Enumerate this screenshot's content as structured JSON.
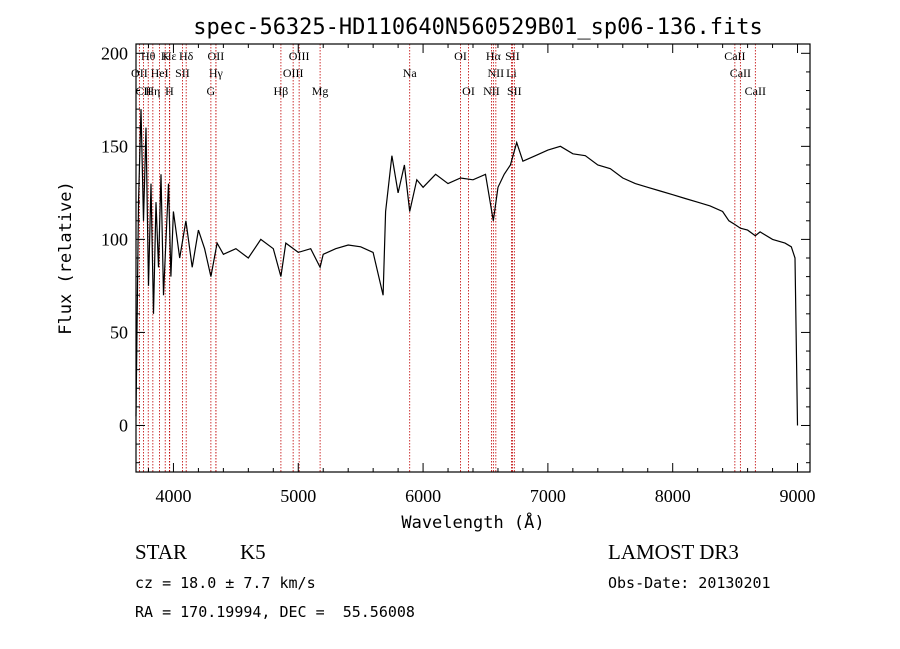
{
  "chart_data": {
    "type": "line",
    "title": "spec-56325-HD110640N560529B01_sp06-136.fits",
    "xlabel": "Wavelength (Å)",
    "ylabel": "Flux (relative)",
    "xlim": [
      3700,
      9100
    ],
    "ylim": [
      -25,
      205
    ],
    "x_ticks": [
      4000,
      5000,
      6000,
      7000,
      8000,
      9000
    ],
    "y_ticks": [
      0,
      50,
      100,
      150,
      200
    ],
    "series": [
      {
        "name": "spectrum",
        "x": [
          3700,
          3720,
          3740,
          3760,
          3780,
          3800,
          3820,
          3840,
          3860,
          3880,
          3900,
          3920,
          3940,
          3960,
          3980,
          4000,
          4050,
          4100,
          4150,
          4200,
          4250,
          4300,
          4350,
          4400,
          4500,
          4600,
          4700,
          4800,
          4861,
          4900,
          5000,
          5100,
          5175,
          5200,
          5300,
          5400,
          5500,
          5600,
          5680,
          5700,
          5750,
          5800,
          5850,
          5893,
          5950,
          6000,
          6100,
          6200,
          6300,
          6400,
          6500,
          6563,
          6600,
          6650,
          6700,
          6750,
          6800,
          6900,
          7000,
          7100,
          7200,
          7300,
          7400,
          7500,
          7600,
          7700,
          7800,
          7900,
          8000,
          8100,
          8200,
          8300,
          8400,
          8450,
          8498,
          8542,
          8600,
          8662,
          8700,
          8800,
          8900,
          8950,
          8980,
          9000
        ],
        "y": [
          5,
          120,
          170,
          110,
          160,
          75,
          130,
          60,
          120,
          85,
          135,
          70,
          100,
          130,
          80,
          115,
          90,
          110,
          85,
          105,
          95,
          80,
          98,
          92,
          95,
          90,
          100,
          95,
          80,
          98,
          93,
          95,
          85,
          92,
          95,
          97,
          96,
          93,
          70,
          115,
          145,
          125,
          140,
          115,
          132,
          128,
          135,
          130,
          133,
          132,
          135,
          110,
          128,
          135,
          140,
          152,
          142,
          145,
          148,
          150,
          146,
          145,
          140,
          138,
          133,
          130,
          128,
          126,
          124,
          122,
          120,
          118,
          115,
          110,
          108,
          106,
          105,
          102,
          104,
          100,
          98,
          96,
          90,
          0
        ]
      }
    ],
    "lines": [
      {
        "name": "Hθ",
        "x": 3798,
        "row": 1
      },
      {
        "name": "Hε",
        "x": 3970,
        "row": 1
      },
      {
        "name": "K",
        "x": 3934,
        "row": 1
      },
      {
        "name": "Hδ",
        "x": 4102,
        "row": 1
      },
      {
        "name": "OII",
        "x": 4340,
        "row": 1
      },
      {
        "name": "OIII",
        "x": 5007,
        "row": 1
      },
      {
        "name": "OI",
        "x": 6300,
        "row": 1
      },
      {
        "name": "Hα",
        "x": 6563,
        "row": 1
      },
      {
        "name": "SII",
        "x": 6716,
        "row": 1
      },
      {
        "name": "CaII",
        "x": 8498,
        "row": 1
      },
      {
        "name": "OII",
        "x": 3727,
        "row": 2
      },
      {
        "name": "HeI",
        "x": 3889,
        "row": 2
      },
      {
        "name": "SII",
        "x": 4072,
        "row": 2
      },
      {
        "name": "Hγ",
        "x": 4340,
        "row": 2
      },
      {
        "name": "OIII",
        "x": 4959,
        "row": 2
      },
      {
        "name": "Na",
        "x": 5893,
        "row": 2
      },
      {
        "name": "NII",
        "x": 6583,
        "row": 2
      },
      {
        "name": "Li",
        "x": 6708,
        "row": 2
      },
      {
        "name": "CaII",
        "x": 8542,
        "row": 2
      },
      {
        "name": "CII",
        "x": 3760,
        "row": 3
      },
      {
        "name": "Hη",
        "x": 3835,
        "row": 3
      },
      {
        "name": "H",
        "x": 3968,
        "row": 3
      },
      {
        "name": "G",
        "x": 4300,
        "row": 3
      },
      {
        "name": "Hβ",
        "x": 4861,
        "row": 3
      },
      {
        "name": "Mg",
        "x": 5175,
        "row": 3
      },
      {
        "name": "OI",
        "x": 6364,
        "row": 3
      },
      {
        "name": "NII",
        "x": 6548,
        "row": 3
      },
      {
        "name": "SII",
        "x": 6731,
        "row": 3
      },
      {
        "name": "CaII",
        "x": 8662,
        "row": 3
      }
    ],
    "line_color": "#c00000"
  },
  "info": {
    "class": "STAR",
    "subclass": "K5",
    "survey": "LAMOST DR3",
    "cz": "cz = 18.0 ± 7.7 km/s",
    "obs_date": "Obs-Date: 20130201",
    "coords": "RA = 170.19994, DEC =  55.56008"
  }
}
